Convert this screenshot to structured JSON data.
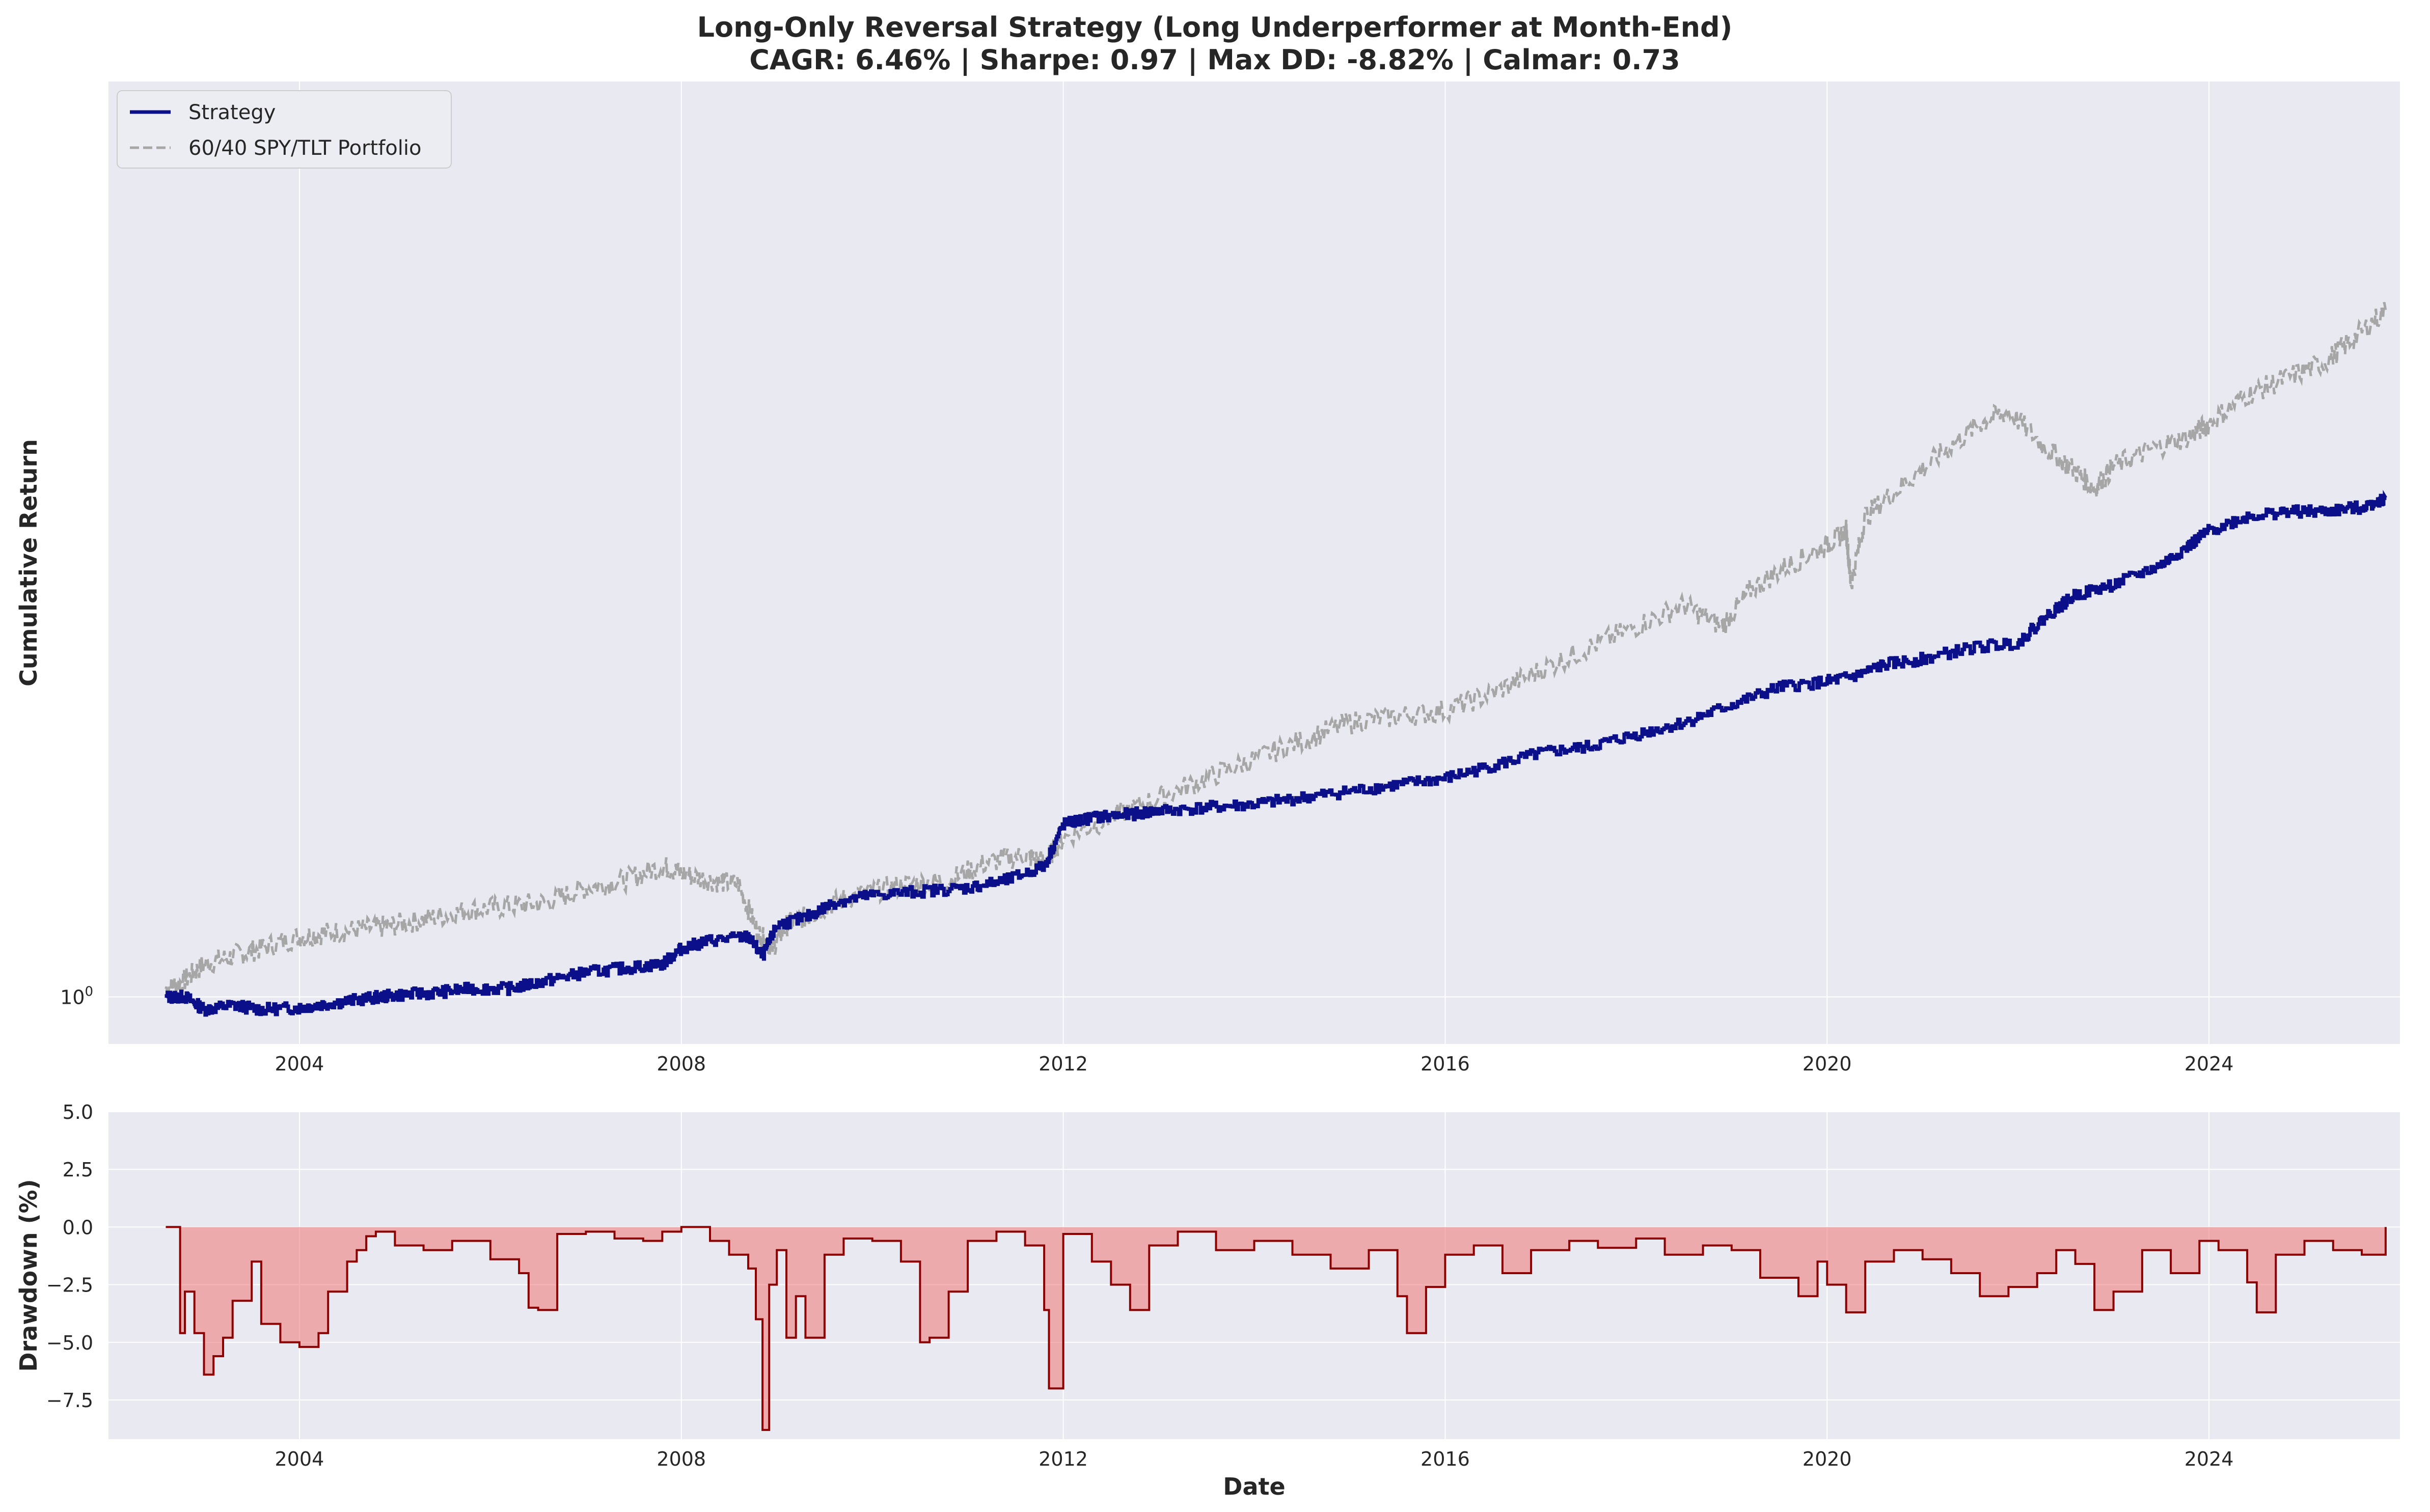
{
  "title_line1": "Long-Only Reversal Strategy (Long Underperformer at Month-End)",
  "title_line2": "CAGR: 6.46% | Sharpe: 0.97 | Max DD: -8.82% | Calmar: 0.73",
  "colors": {
    "strategy": "#0b0f8a",
    "benchmark": "#a6a6a6",
    "drawdown_line": "#8b0000",
    "drawdown_fill": "#f08080",
    "panel_bg": "#e9e9f1",
    "grid": "#ffffff"
  },
  "chart_data": [
    {
      "type": "line",
      "panel": "top",
      "title": "Long-Only Reversal Strategy (Long Underperformer at Month-End)",
      "subtitle": "CAGR: 6.46% | Sharpe: 0.97 | Max DD: -8.82% | Calmar: 0.73",
      "xlabel": "",
      "ylabel": "Cumulative Return",
      "yscale": "log",
      "ytick_labels": [
        "10^0"
      ],
      "xlim": [
        2002.0,
        2026.0
      ],
      "ylim": [
        0.945,
        3.0
      ],
      "xticks": [
        2004,
        2008,
        2012,
        2016,
        2020,
        2024
      ],
      "grid": true,
      "legend": "top-left",
      "series": [
        {
          "name": "Strategy",
          "style": "solid",
          "x": [
            2002.6,
            2002.8,
            2003.0,
            2003.3,
            2003.6,
            2004.0,
            2004.3,
            2004.7,
            2005.0,
            2005.4,
            2005.8,
            2006.2,
            2006.6,
            2007.0,
            2007.4,
            2007.8,
            2008.0,
            2008.3,
            2008.7,
            2008.85,
            2009.0,
            2009.3,
            2009.6,
            2010.0,
            2010.5,
            2011.0,
            2011.4,
            2011.8,
            2012.0,
            2012.3,
            2012.7,
            2013.0,
            2013.5,
            2014.0,
            2014.5,
            2015.0,
            2015.5,
            2016.0,
            2016.5,
            2017.0,
            2017.5,
            2018.0,
            2018.5,
            2019.0,
            2019.5,
            2020.0,
            2020.3,
            2020.6,
            2021.0,
            2021.5,
            2022.0,
            2022.3,
            2022.6,
            2023.0,
            2023.5,
            2023.8,
            2024.0,
            2024.4,
            2024.8,
            2025.2,
            2025.6,
            2025.85
          ],
          "y": [
            1.0,
            1.0,
            0.985,
            0.99,
            0.985,
            0.987,
            0.992,
            0.998,
            1.002,
            1.005,
            1.01,
            1.01,
            1.02,
            1.03,
            1.035,
            1.04,
            1.06,
            1.07,
            1.075,
            1.05,
            1.09,
            1.1,
            1.12,
            1.13,
            1.135,
            1.14,
            1.15,
            1.17,
            1.23,
            1.24,
            1.245,
            1.25,
            1.255,
            1.26,
            1.27,
            1.28,
            1.29,
            1.3,
            1.32,
            1.34,
            1.35,
            1.37,
            1.39,
            1.42,
            1.45,
            1.46,
            1.47,
            1.49,
            1.5,
            1.52,
            1.53,
            1.58,
            1.62,
            1.64,
            1.68,
            1.72,
            1.75,
            1.78,
            1.79,
            1.79,
            1.8,
            1.82
          ]
        },
        {
          "name": "60/40 SPY/TLT Portfolio",
          "style": "dashed",
          "x": [
            2002.6,
            2002.8,
            2003.0,
            2003.3,
            2003.6,
            2004.0,
            2004.3,
            2004.7,
            2005.0,
            2005.4,
            2005.8,
            2006.2,
            2006.6,
            2007.0,
            2007.4,
            2007.8,
            2008.0,
            2008.3,
            2008.6,
            2008.8,
            2008.95,
            2009.1,
            2009.3,
            2009.6,
            2010.0,
            2010.4,
            2010.8,
            2011.2,
            2011.6,
            2011.8,
            2012.0,
            2012.5,
            2013.0,
            2013.5,
            2014.0,
            2014.5,
            2015.0,
            2015.5,
            2016.0,
            2016.5,
            2017.0,
            2017.5,
            2018.0,
            2018.5,
            2018.9,
            2019.2,
            2019.6,
            2020.0,
            2020.2,
            2020.25,
            2020.4,
            2020.8,
            2021.2,
            2021.6,
            2021.9,
            2022.3,
            2022.6,
            2022.8,
            2023.0,
            2023.4,
            2023.8,
            2024.0,
            2024.4,
            2024.8,
            2025.2,
            2025.5,
            2025.85
          ],
          "y": [
            1.01,
            1.02,
            1.04,
            1.05,
            1.06,
            1.075,
            1.08,
            1.085,
            1.09,
            1.1,
            1.11,
            1.115,
            1.12,
            1.14,
            1.15,
            1.17,
            1.16,
            1.15,
            1.145,
            1.08,
            1.06,
            1.09,
            1.1,
            1.12,
            1.135,
            1.145,
            1.15,
            1.175,
            1.185,
            1.175,
            1.21,
            1.24,
            1.27,
            1.3,
            1.33,
            1.36,
            1.39,
            1.4,
            1.41,
            1.44,
            1.48,
            1.52,
            1.56,
            1.6,
            1.56,
            1.63,
            1.68,
            1.72,
            1.75,
            1.64,
            1.78,
            1.85,
            1.92,
            1.99,
            2.02,
            1.93,
            1.88,
            1.84,
            1.89,
            1.93,
            1.96,
            1.99,
            2.06,
            2.1,
            2.14,
            2.2,
            2.28
          ]
        }
      ]
    },
    {
      "type": "area",
      "panel": "bottom",
      "xlabel": "Date",
      "ylabel": "Drawdown (%)",
      "xlim": [
        2002.0,
        2026.0
      ],
      "ylim": [
        -9.2,
        5.0
      ],
      "yticks": [
        5.0,
        2.5,
        0.0,
        -2.5,
        -5.0,
        -7.5
      ],
      "ytick_labels": [
        "5.0",
        "2.5",
        "0.0",
        "−2.5",
        "−5.0",
        "−7.5"
      ],
      "xticks": [
        2004,
        2008,
        2012,
        2016,
        2020,
        2024
      ],
      "grid": true,
      "series": [
        {
          "name": "",
          "x": [
            2002.6,
            2002.75,
            2002.8,
            2002.9,
            2003.0,
            2003.1,
            2003.2,
            2003.3,
            2003.5,
            2003.6,
            2003.8,
            2004.0,
            2004.2,
            2004.3,
            2004.5,
            2004.6,
            2004.7,
            2004.8,
            2005.0,
            2005.3,
            2005.6,
            2006.0,
            2006.3,
            2006.4,
            2006.5,
            2006.7,
            2007.0,
            2007.3,
            2007.6,
            2007.8,
            2008.0,
            2008.3,
            2008.5,
            2008.7,
            2008.78,
            2008.85,
            2008.92,
            2009.0,
            2009.1,
            2009.2,
            2009.3,
            2009.5,
            2009.7,
            2010.0,
            2010.3,
            2010.5,
            2010.6,
            2010.8,
            2011.0,
            2011.3,
            2011.6,
            2011.8,
            2011.85,
            2012.0,
            2012.3,
            2012.5,
            2012.7,
            2012.9,
            2013.2,
            2013.6,
            2014.0,
            2014.4,
            2014.8,
            2015.2,
            2015.5,
            2015.6,
            2015.8,
            2016.0,
            2016.3,
            2016.6,
            2016.9,
            2017.3,
            2017.6,
            2018.0,
            2018.3,
            2018.7,
            2019.0,
            2019.3,
            2019.7,
            2019.9,
            2020.0,
            2020.2,
            2020.4,
            2020.7,
            2021.0,
            2021.3,
            2021.6,
            2021.9,
            2022.2,
            2022.4,
            2022.6,
            2022.8,
            2023.0,
            2023.3,
            2023.6,
            2023.9,
            2024.1,
            2024.4,
            2024.5,
            2024.7,
            2025.0,
            2025.3,
            2025.6,
            2025.85
          ],
          "y": [
            0.0,
            -4.6,
            -2.8,
            -4.6,
            -6.4,
            -5.6,
            -4.8,
            -3.2,
            -1.5,
            -4.2,
            -5.0,
            -5.2,
            -4.6,
            -2.8,
            -1.5,
            -1.0,
            -0.4,
            -0.2,
            -0.8,
            -1.0,
            -0.6,
            -1.4,
            -2.0,
            -3.5,
            -3.6,
            -0.3,
            -0.2,
            -0.5,
            -0.6,
            -0.2,
            0.0,
            -0.6,
            -1.2,
            -1.8,
            -4.0,
            -8.8,
            -2.5,
            -1.0,
            -4.8,
            -3.0,
            -4.8,
            -1.2,
            -0.5,
            -0.6,
            -1.5,
            -5.0,
            -4.8,
            -2.8,
            -0.6,
            -0.2,
            -0.8,
            -3.6,
            -7.0,
            -0.3,
            -1.5,
            -2.5,
            -3.6,
            -0.8,
            -0.2,
            -1.0,
            -0.6,
            -1.2,
            -1.8,
            -1.0,
            -3.0,
            -4.6,
            -2.6,
            -1.2,
            -0.8,
            -2.0,
            -1.0,
            -0.6,
            -0.9,
            -0.5,
            -1.2,
            -0.8,
            -1.0,
            -2.2,
            -3.0,
            -1.5,
            -2.5,
            -3.7,
            -1.5,
            -1.0,
            -1.4,
            -2.0,
            -3.0,
            -2.6,
            -2.0,
            -1.0,
            -1.6,
            -3.6,
            -2.8,
            -1.0,
            -2.0,
            -0.6,
            -1.0,
            -2.4,
            -3.7,
            -1.2,
            -0.6,
            -1.0,
            -1.2,
            0.0
          ]
        }
      ]
    }
  ]
}
